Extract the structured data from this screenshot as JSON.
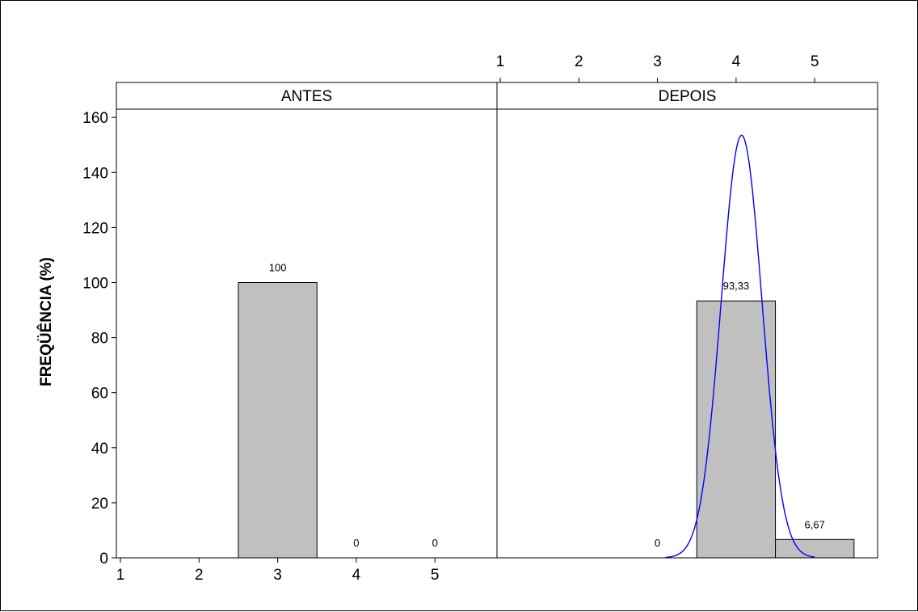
{
  "chart_data": {
    "type": "bar",
    "ylabel": "FREQÜÊNCIA (%)",
    "ylim": [
      0,
      165
    ],
    "yticks": [
      "0",
      "20",
      "40",
      "60",
      "80",
      "100",
      "120",
      "140",
      "160"
    ],
    "xticks": [
      "1",
      "2",
      "3",
      "4",
      "5"
    ],
    "grid": false,
    "panels": [
      {
        "name": "ANTES",
        "categories": [
          3,
          4,
          5
        ],
        "values": [
          100,
          0,
          0
        ],
        "labels": [
          "100",
          "0",
          "0"
        ]
      },
      {
        "name": "DEPOIS",
        "categories": [
          3,
          4,
          5
        ],
        "values": [
          0,
          93.33,
          6.67
        ],
        "labels": [
          "0",
          "93,33",
          "6,67"
        ],
        "fit_curve": {
          "type": "normal",
          "mean": 4.07,
          "peak": 153.5,
          "sd": 0.26,
          "color": "#0000ff"
        }
      }
    ]
  }
}
